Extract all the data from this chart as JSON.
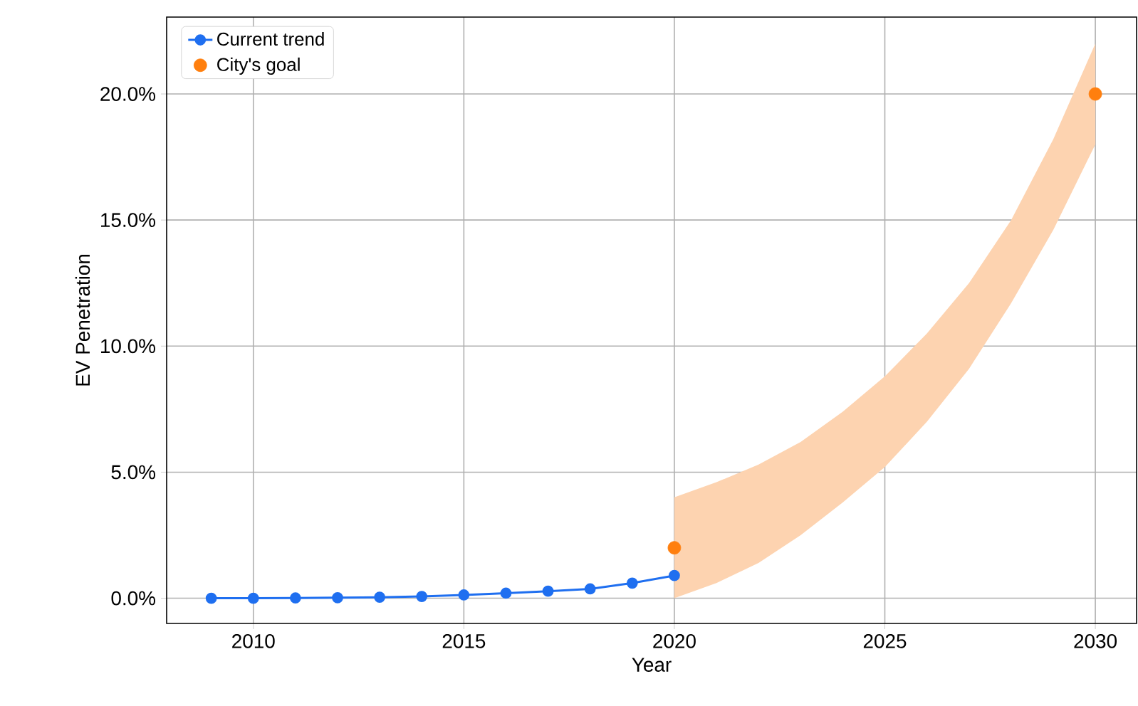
{
  "chart_data": {
    "type": "line",
    "xlabel": "Year",
    "ylabel": "EV Penetration",
    "xlim": [
      2007.94,
      2030.98
    ],
    "ylim": [
      -1.0,
      23.05
    ],
    "xticks": [
      2010,
      2015,
      2020,
      2025,
      2030
    ],
    "yticks": [
      {
        "value": 0,
        "label": "0.0%"
      },
      {
        "value": 5,
        "label": "5.0%"
      },
      {
        "value": 10,
        "label": "10.0%"
      },
      {
        "value": 15,
        "label": "15.0%"
      },
      {
        "value": 20,
        "label": "20.0%"
      }
    ],
    "grid": true,
    "legend": "top left",
    "marker": "circle",
    "series": [
      {
        "color": "#fdd3b0",
        "x": [
          2020,
          2021,
          2022,
          2023,
          2024,
          2025,
          2026,
          2027,
          2028,
          2029,
          2030
        ],
        "values": [
          null,
          null,
          null,
          null,
          null,
          null,
          null,
          null,
          null,
          null,
          null
        ],
        "lower": [
          0.0,
          0.6,
          1.4,
          2.5,
          3.8,
          5.2,
          7.0,
          9.1,
          11.7,
          14.6,
          18.0
        ],
        "upper": [
          4.0,
          4.6,
          5.3,
          6.2,
          7.4,
          8.8,
          10.5,
          12.5,
          15.0,
          18.2,
          22.0
        ]
      },
      {
        "name": "Current trend",
        "color": "#1f6ff0",
        "x": [
          2009,
          2010,
          2011,
          2012,
          2013,
          2014,
          2015,
          2016,
          2017,
          2018,
          2019,
          2020
        ],
        "values": [
          0.0,
          0.0,
          0.01,
          0.02,
          0.04,
          0.07,
          0.13,
          0.2,
          0.28,
          0.37,
          0.6,
          0.9
        ]
      },
      {
        "name": "City's goal",
        "type": "scatter",
        "color": "#ff7f0e",
        "x": [
          2020,
          2030
        ],
        "values": [
          2.0,
          20.0
        ]
      }
    ]
  }
}
